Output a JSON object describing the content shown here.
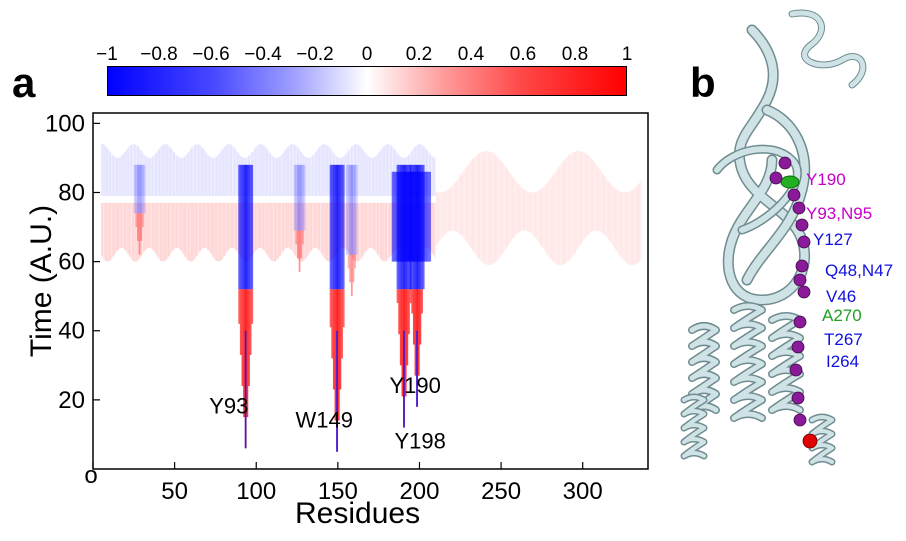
{
  "panel_a": {
    "letter": "a",
    "colorbar": {
      "ticks": [
        "−1",
        "−0.8",
        "−0.6",
        "−0.4",
        "−0.2",
        "0",
        "0.2",
        "0.4",
        "0.6",
        "0.8",
        "1"
      ],
      "range": [
        -1,
        1
      ],
      "colors": {
        "negative": "#0000ff",
        "zero": "#ffffff",
        "positive": "#ff0000"
      }
    },
    "chart_data": {
      "type": "heatmap",
      "xlabel": "Residues",
      "ylabel": "Time (A.U.)",
      "x_tick_labels": [
        "o",
        "50",
        "100",
        "150",
        "200",
        "250",
        "300"
      ],
      "x_ticks": [
        0,
        50,
        100,
        150,
        200,
        250,
        300
      ],
      "y_tick_labels": [
        "20",
        "40",
        "60",
        "80",
        "100"
      ],
      "y_ticks": [
        20,
        40,
        60,
        80,
        100
      ],
      "xlim": [
        0,
        340
      ],
      "ylim": [
        0,
        103
      ],
      "annotations": [
        {
          "text": "Y93",
          "residue": 93
        },
        {
          "text": "W149",
          "residue": 149
        },
        {
          "text": "Y190",
          "residue": 190
        },
        {
          "text": "Y198",
          "residue": 198
        }
      ],
      "dips": [
        {
          "residue": 28,
          "min_time": 62
        },
        {
          "residue": 93,
          "min_time": 6
        },
        {
          "residue": 126,
          "min_time": 57
        },
        {
          "residue": 149,
          "min_time": 5
        },
        {
          "residue": 158,
          "min_time": 50
        },
        {
          "residue": 190,
          "min_time": 12
        },
        {
          "residue": 198,
          "min_time": 18
        }
      ],
      "baseline_time": 78
    }
  },
  "panel_b": {
    "letter": "b",
    "labels": [
      {
        "text": "Y190",
        "color": "#c800c8"
      },
      {
        "text": "Y93,N95",
        "color": "#c800c8"
      },
      {
        "text": "Y127",
        "color": "#1010e0"
      },
      {
        "text": "Q48,N47",
        "color": "#1010e0"
      },
      {
        "text": "V46",
        "color": "#1010e0"
      },
      {
        "text": "A270",
        "color": "#20a020"
      },
      {
        "text": "T267",
        "color": "#1010e0"
      },
      {
        "text": "I264",
        "color": "#1010e0"
      }
    ],
    "colors": {
      "ribbon": "#cfe3e6",
      "ribbon_edge": "#6f8c90",
      "sphere": "#8a1a9a",
      "end_sphere": "#e00000",
      "green_site": "#22b022"
    }
  }
}
